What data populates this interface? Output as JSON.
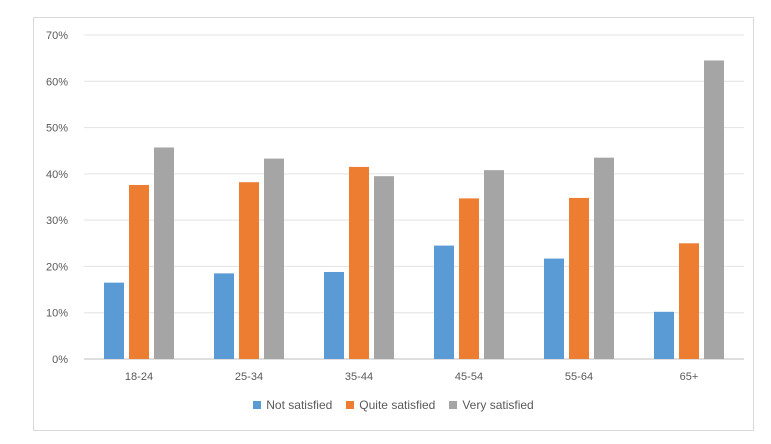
{
  "chart_data": {
    "type": "bar",
    "categories": [
      "18-24",
      "25-34",
      "35-44",
      "45-54",
      "55-64",
      "65+"
    ],
    "series": [
      {
        "name": "Not satisfied",
        "color": "#5b9bd5",
        "values": [
          16.5,
          18.5,
          18.8,
          24.5,
          21.7,
          10.2
        ]
      },
      {
        "name": "Quite satisfied",
        "color": "#ed7d31",
        "values": [
          37.6,
          38.2,
          41.5,
          34.7,
          34.8,
          25.0
        ]
      },
      {
        "name": "Very satisfied",
        "color": "#a5a5a5",
        "values": [
          45.7,
          43.3,
          39.5,
          40.8,
          43.5,
          64.5
        ]
      }
    ],
    "ylim": [
      0,
      70
    ],
    "yticks": [
      "0%",
      "10%",
      "20%",
      "30%",
      "40%",
      "50%",
      "60%",
      "70%"
    ],
    "grid": true,
    "legend_position": "bottom"
  }
}
